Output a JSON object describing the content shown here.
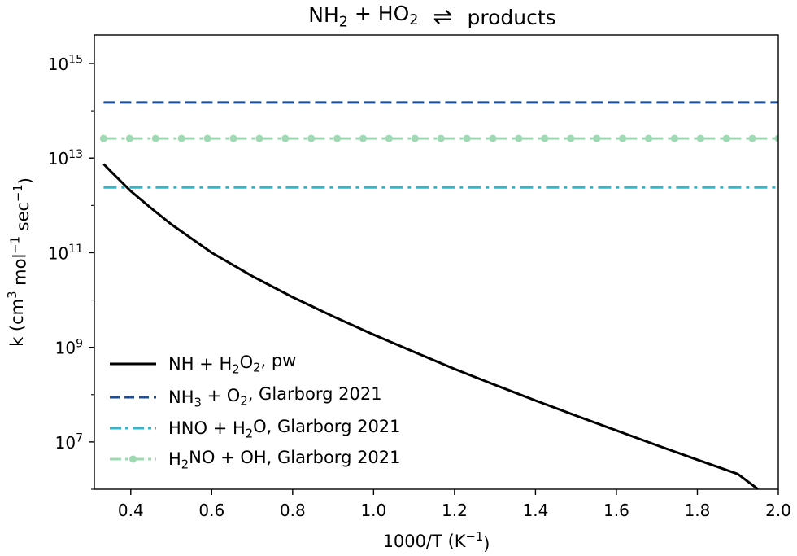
{
  "chart_data": {
    "type": "line",
    "title": {
      "left_parts": [
        {
          "text": "NH"
        },
        {
          "text": "2",
          "sub": true
        },
        {
          "text": " + HO"
        },
        {
          "text": "2",
          "sub": true
        }
      ],
      "arrow": "⇌",
      "right": "products"
    },
    "xlabel": {
      "parts": [
        {
          "text": "1000/T (K"
        },
        {
          "text": "−1",
          "sup": true
        },
        {
          "text": ")"
        }
      ]
    },
    "ylabel": {
      "parts": [
        {
          "text": "k (cm"
        },
        {
          "text": "3",
          "sup": true
        },
        {
          "text": " mol"
        },
        {
          "text": "−1",
          "sup": true
        },
        {
          "text": " sec"
        },
        {
          "text": "−1",
          "sup": true
        },
        {
          "text": ")"
        }
      ]
    },
    "x_scale": "linear",
    "y_scale": "log",
    "xlim": [
      0.31,
      2.0
    ],
    "ylim": [
      1000000.0,
      4000000000000000.0
    ],
    "x_ticks": [
      {
        "value": 0.4,
        "label": "0.4"
      },
      {
        "value": 0.6,
        "label": "0.6"
      },
      {
        "value": 0.8,
        "label": "0.8"
      },
      {
        "value": 1.0,
        "label": "1.0"
      },
      {
        "value": 1.2,
        "label": "1.2"
      },
      {
        "value": 1.4,
        "label": "1.4"
      },
      {
        "value": 1.6,
        "label": "1.6"
      },
      {
        "value": 1.8,
        "label": "1.8"
      },
      {
        "value": 2.0,
        "label": "2.0"
      }
    ],
    "y_ticks": [
      {
        "value": 10000000.0,
        "base": "10",
        "exp": "7"
      },
      {
        "value": 1000000000.0,
        "base": "10",
        "exp": "9"
      },
      {
        "value": 100000000000.0,
        "base": "10",
        "exp": "11"
      },
      {
        "value": 10000000000000.0,
        "base": "10",
        "exp": "13"
      },
      {
        "value": 1000000000000000.0,
        "base": "10",
        "exp": "15"
      }
    ],
    "grid": false,
    "legend_position": "lower-left",
    "series": [
      {
        "name_parts": [
          {
            "text": "NH + H"
          },
          {
            "text": "2",
            "sub": true
          },
          {
            "text": "O"
          },
          {
            "text": "2",
            "sub": true
          },
          {
            "text": ", pw"
          }
        ],
        "color": "#000000",
        "style": "solid",
        "marker": "none",
        "x": [
          0.333,
          0.35,
          0.4,
          0.45,
          0.5,
          0.6,
          0.7,
          0.8,
          0.9,
          1.0,
          1.1,
          1.2,
          1.3,
          1.4,
          1.5,
          1.6,
          1.7,
          1.8,
          1.9,
          1.95
        ],
        "y": [
          7500000000000.0,
          5300000000000.0,
          2000000000000.0,
          880000000000.0,
          400000000000.0,
          100000000000.0,
          32000000000.0,
          11500000000.0,
          4500000000.0,
          1850000000.0,
          800000000.0,
          350000000.0,
          160000000.0,
          75000000.0,
          36000000.0,
          17500000.0,
          8500000.0,
          4200000.0,
          2100000.0,
          1000000.0
        ]
      },
      {
        "name_parts": [
          {
            "text": "NH"
          },
          {
            "text": "3",
            "sub": true
          },
          {
            "text": " + O"
          },
          {
            "text": "2",
            "sub": true
          },
          {
            "text": ", Glarborg 2021"
          }
        ],
        "color": "#1f4e96",
        "style": "dashed",
        "marker": "none",
        "x": [
          0.333,
          2.0
        ],
        "y": [
          150000000000000.0,
          150000000000000.0
        ]
      },
      {
        "name_parts": [
          {
            "text": "HNO + H"
          },
          {
            "text": "2",
            "sub": true
          },
          {
            "text": "O, Glarborg 2021"
          }
        ],
        "color": "#34b5c9",
        "style": "dashdot",
        "marker": "none",
        "x": [
          0.333,
          2.0
        ],
        "y": [
          2400000000000.0,
          2400000000000.0
        ]
      },
      {
        "name_parts": [
          {
            "text": "H"
          },
          {
            "text": "2",
            "sub": true
          },
          {
            "text": "NO + OH, Glarborg 2021"
          }
        ],
        "color": "#9ed9b3",
        "style": "dashdot",
        "marker": "circle",
        "x": [
          0.333,
          2.0
        ],
        "y": [
          26000000000000.0,
          26000000000000.0
        ],
        "marker_count": 27
      }
    ]
  }
}
